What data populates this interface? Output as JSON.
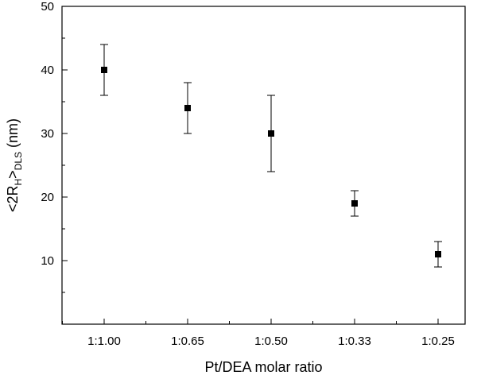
{
  "chart_data": {
    "type": "scatter",
    "xlabel": "Pt/DEA molar ratio",
    "ylabel": {
      "prefix": "<2R",
      "sub1": "H",
      "mid": ">",
      "sub2": "DLS",
      "suffix": " (nm)"
    },
    "categories": [
      "1:1.00",
      "1:0.65",
      "1:0.50",
      "1:0.33",
      "1:0.25"
    ],
    "values": [
      40,
      34,
      30,
      19,
      11
    ],
    "error_low": [
      36,
      30,
      24,
      17,
      9
    ],
    "error_high": [
      44,
      38,
      36,
      21,
      13
    ],
    "ylim": [
      0,
      50
    ],
    "y_ticks": [
      10,
      20,
      30,
      40,
      50
    ],
    "marker": "square",
    "color": "#000000",
    "grid": false,
    "legend": "none"
  }
}
